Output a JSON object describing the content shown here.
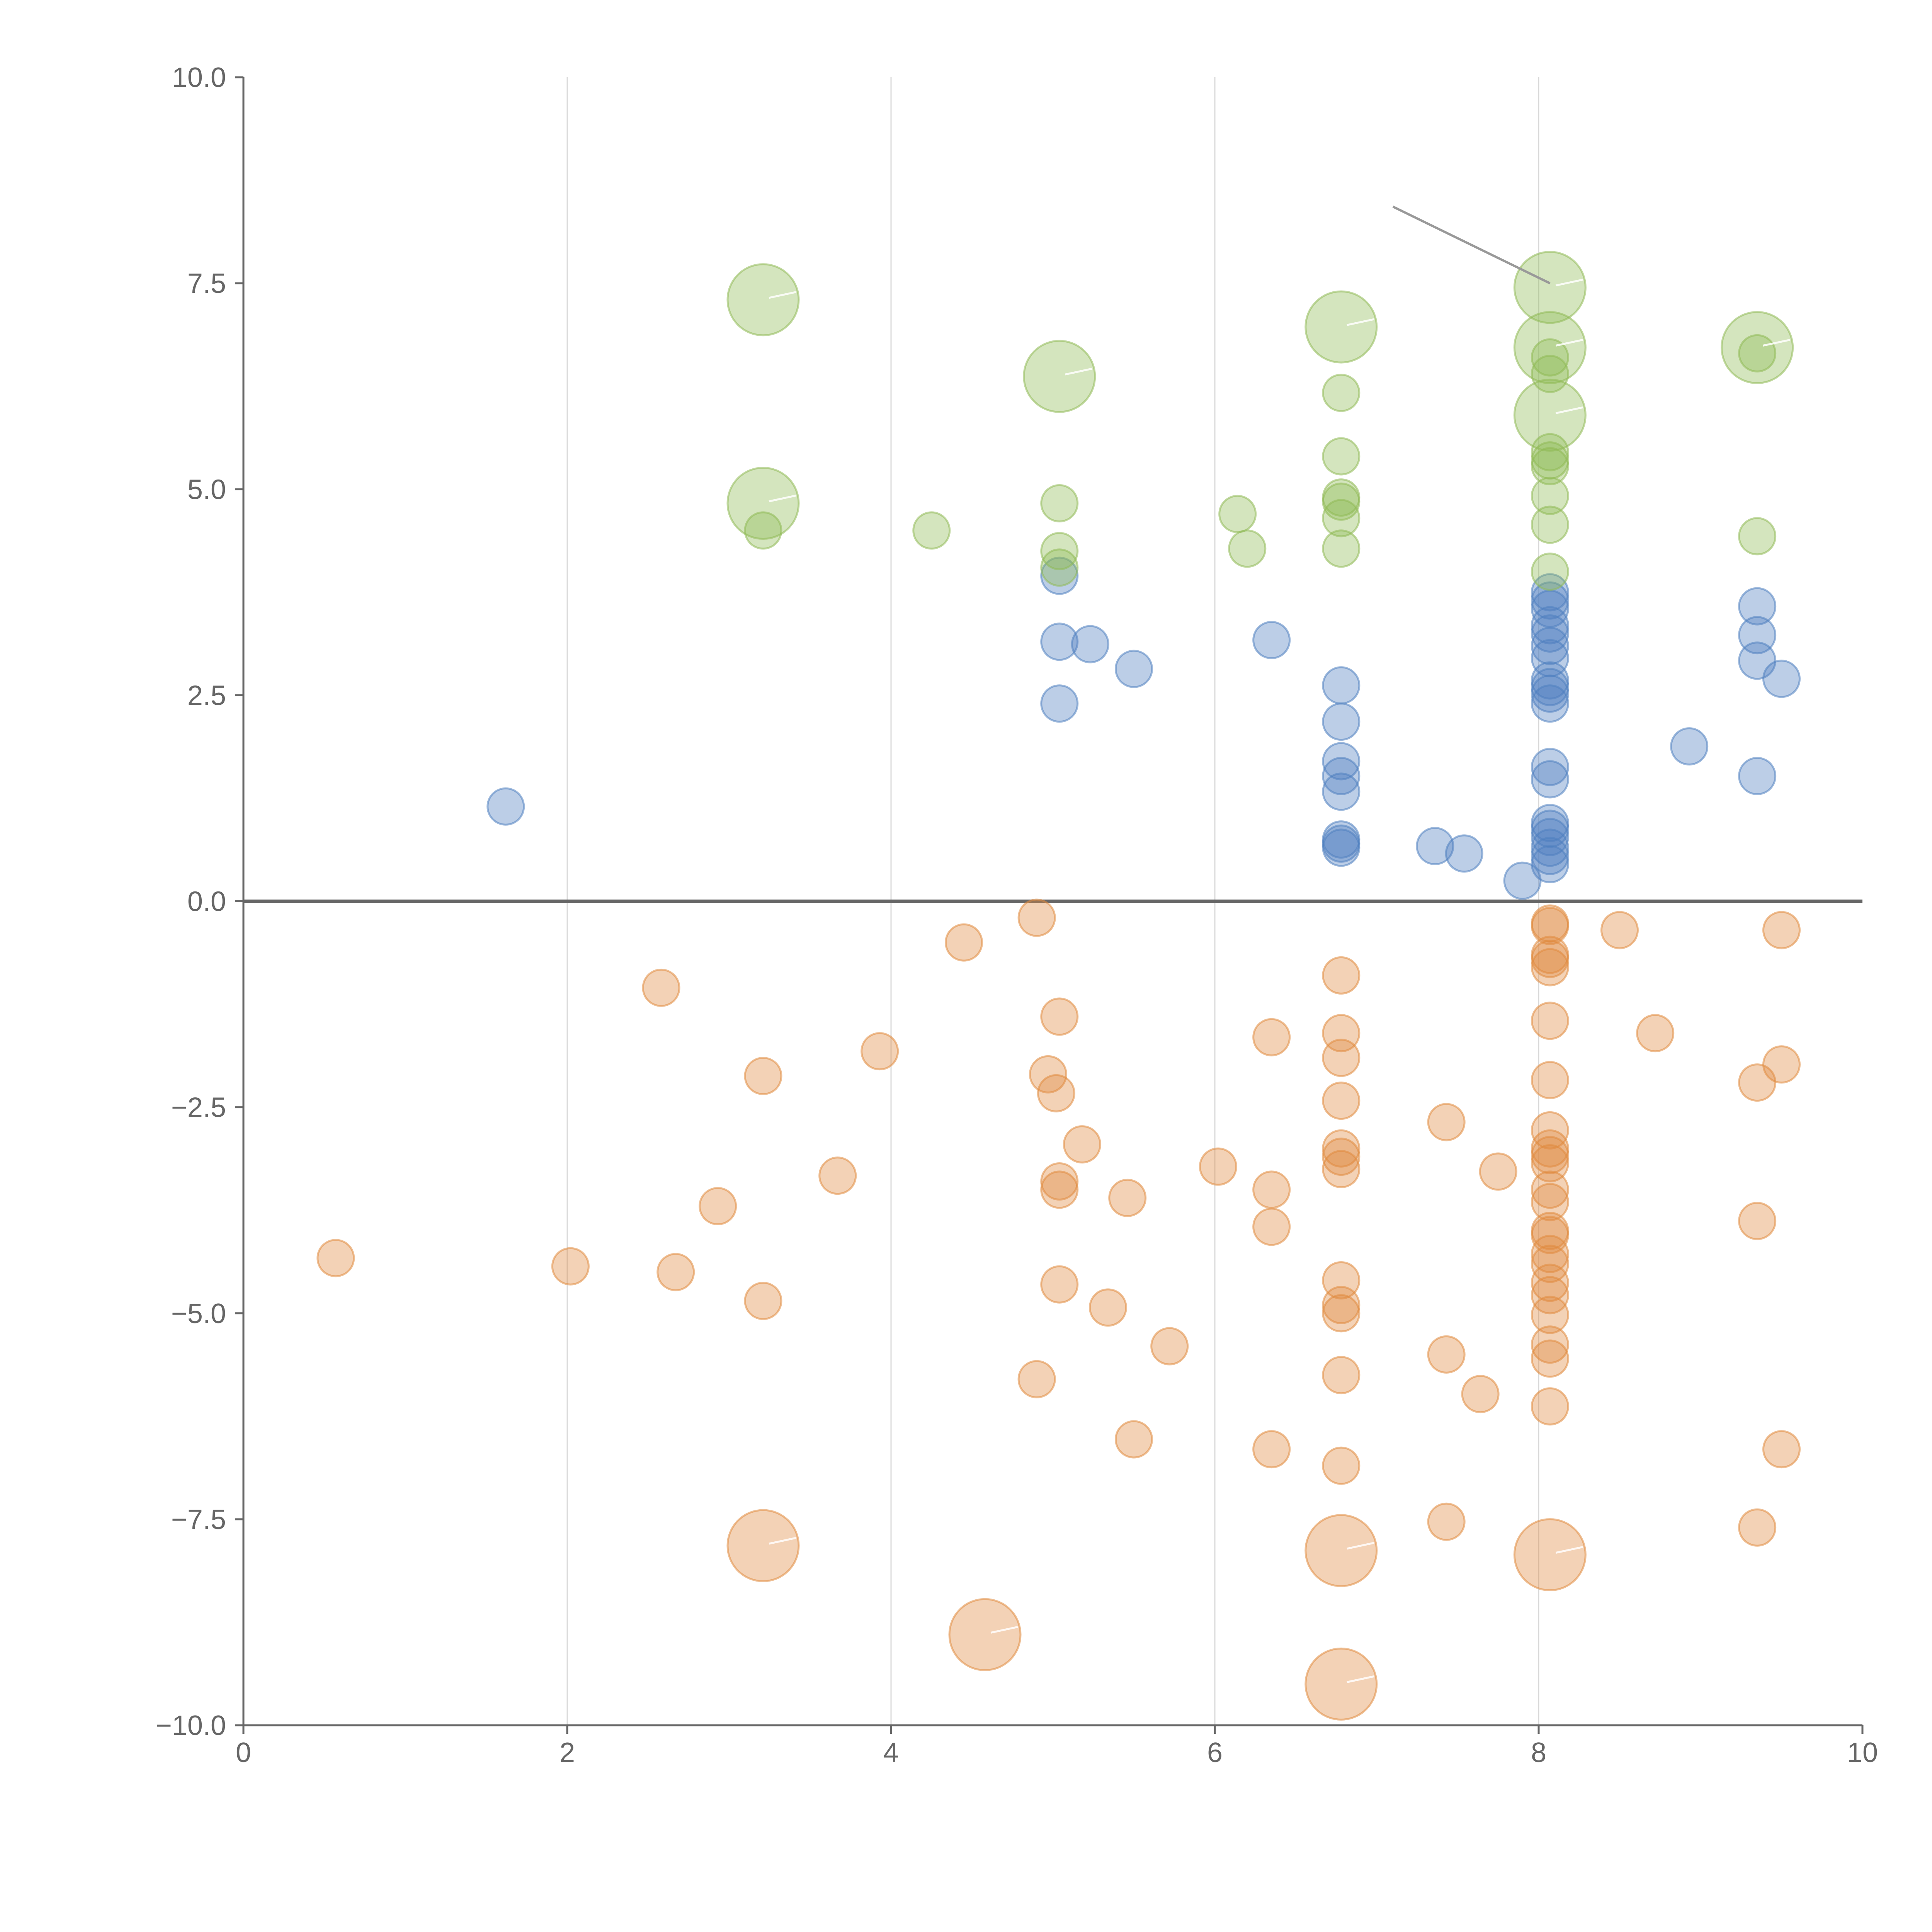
{
  "chart_data": {
    "type": "scatter",
    "title": "",
    "xlabel": "",
    "ylabel": "",
    "xlim": [
      0,
      10
    ],
    "ylim": [
      -10,
      10
    ],
    "x_ticks": [
      "0",
      "2",
      "4",
      "6",
      "8",
      "10"
    ],
    "y_ticks": [
      "10.0",
      "7.5",
      "5.0",
      "2.5",
      "0.0",
      "−2.5",
      "−5.0",
      "−7.5",
      "−10.0"
    ],
    "grid": "vertical",
    "colors": {
      "blue": "#4f7fc0",
      "orange": "#e08a3e",
      "green": "#8fba55"
    },
    "series": [
      {
        "name": "blue",
        "color": "#4f7fc0",
        "points": [
          [
            1.62,
            1.15
          ],
          [
            5.04,
            3.95
          ],
          [
            5.04,
            3.15
          ],
          [
            5.04,
            2.4
          ],
          [
            5.23,
            3.12
          ],
          [
            5.5,
            2.82
          ],
          [
            6.35,
            3.17
          ],
          [
            6.78,
            2.62
          ],
          [
            6.78,
            2.18
          ],
          [
            6.78,
            1.7
          ],
          [
            6.78,
            1.52
          ],
          [
            6.78,
            1.33
          ],
          [
            6.78,
            0.75
          ],
          [
            6.78,
            0.7
          ],
          [
            6.78,
            0.65
          ],
          [
            7.36,
            0.67
          ],
          [
            7.54,
            0.58
          ],
          [
            7.9,
            0.25
          ],
          [
            8.07,
            3.75
          ],
          [
            8.07,
            3.65
          ],
          [
            8.07,
            3.55
          ],
          [
            8.07,
            3.35
          ],
          [
            8.07,
            3.25
          ],
          [
            8.07,
            3.1
          ],
          [
            8.07,
            2.95
          ],
          [
            8.07,
            2.68
          ],
          [
            8.07,
            2.6
          ],
          [
            8.07,
            2.52
          ],
          [
            8.07,
            2.4
          ],
          [
            8.07,
            1.63
          ],
          [
            8.07,
            1.48
          ],
          [
            8.07,
            0.95
          ],
          [
            8.07,
            0.88
          ],
          [
            8.07,
            0.78
          ],
          [
            8.07,
            0.65
          ],
          [
            8.07,
            0.55
          ],
          [
            8.07,
            0.45
          ],
          [
            8.93,
            1.88
          ],
          [
            9.35,
            3.58
          ],
          [
            9.35,
            3.23
          ],
          [
            9.35,
            2.92
          ],
          [
            9.35,
            1.52
          ],
          [
            9.5,
            2.7
          ]
        ]
      },
      {
        "name": "orange",
        "color": "#e08a3e",
        "points": [
          [
            0.57,
            -4.33
          ],
          [
            2.02,
            -4.43
          ],
          [
            2.58,
            -1.05
          ],
          [
            2.67,
            -4.5
          ],
          [
            2.93,
            -3.7
          ],
          [
            3.21,
            -2.12
          ],
          [
            3.21,
            -4.85
          ],
          [
            3.67,
            -3.33
          ],
          [
            3.93,
            -1.82
          ],
          [
            4.45,
            -0.5
          ],
          [
            4.9,
            -0.2
          ],
          [
            4.9,
            -5.8
          ],
          [
            4.97,
            -2.1
          ],
          [
            5.02,
            -2.33
          ],
          [
            5.04,
            -1.4
          ],
          [
            5.04,
            -3.4
          ],
          [
            5.04,
            -3.5
          ],
          [
            5.04,
            -4.65
          ],
          [
            5.18,
            -2.95
          ],
          [
            5.34,
            -4.93
          ],
          [
            5.46,
            -3.6
          ],
          [
            5.5,
            -6.53
          ],
          [
            5.72,
            -5.4
          ],
          [
            6.02,
            -3.22
          ],
          [
            6.35,
            -1.65
          ],
          [
            6.35,
            -3.5
          ],
          [
            6.35,
            -3.95
          ],
          [
            6.35,
            -6.65
          ],
          [
            6.78,
            -0.9
          ],
          [
            6.78,
            -1.6
          ],
          [
            6.78,
            -1.9
          ],
          [
            6.78,
            -2.42
          ],
          [
            6.78,
            -3.0
          ],
          [
            6.78,
            -3.1
          ],
          [
            6.78,
            -3.25
          ],
          [
            6.78,
            -4.6
          ],
          [
            6.78,
            -4.9
          ],
          [
            6.78,
            -5.0
          ],
          [
            6.78,
            -5.75
          ],
          [
            6.78,
            -6.85
          ],
          [
            7.43,
            -2.68
          ],
          [
            7.43,
            -5.5
          ],
          [
            7.43,
            -7.53
          ],
          [
            7.64,
            -5.98
          ],
          [
            7.75,
            -3.28
          ],
          [
            8.07,
            -0.27
          ],
          [
            8.07,
            -0.3
          ],
          [
            8.07,
            -0.65
          ],
          [
            8.07,
            -0.7
          ],
          [
            8.07,
            -0.8
          ],
          [
            8.07,
            -1.45
          ],
          [
            8.07,
            -2.17
          ],
          [
            8.07,
            -2.78
          ],
          [
            8.07,
            -3.0
          ],
          [
            8.07,
            -3.08
          ],
          [
            8.07,
            -3.18
          ],
          [
            8.07,
            -3.5
          ],
          [
            8.07,
            -3.65
          ],
          [
            8.07,
            -4.0
          ],
          [
            8.07,
            -4.05
          ],
          [
            8.07,
            -4.28
          ],
          [
            8.07,
            -4.4
          ],
          [
            8.07,
            -4.63
          ],
          [
            8.07,
            -4.78
          ],
          [
            8.07,
            -5.02
          ],
          [
            8.07,
            -5.38
          ],
          [
            8.07,
            -5.55
          ],
          [
            8.07,
            -6.13
          ],
          [
            8.5,
            -0.35
          ],
          [
            8.72,
            -1.6
          ],
          [
            9.35,
            -2.2
          ],
          [
            9.35,
            -3.88
          ],
          [
            9.35,
            -7.6
          ],
          [
            9.5,
            -0.35
          ],
          [
            9.5,
            -1.98
          ],
          [
            9.5,
            -6.65
          ]
        ]
      },
      {
        "name": "green",
        "color": "#8fba55",
        "points": [
          [
            3.21,
            4.5
          ],
          [
            4.25,
            4.5
          ],
          [
            5.04,
            4.83
          ],
          [
            5.04,
            4.25
          ],
          [
            5.04,
            4.05
          ],
          [
            6.14,
            4.7
          ],
          [
            6.2,
            4.28
          ],
          [
            6.78,
            6.17
          ],
          [
            6.78,
            5.4
          ],
          [
            6.78,
            4.9
          ],
          [
            6.78,
            4.85
          ],
          [
            6.78,
            4.65
          ],
          [
            6.78,
            4.28
          ],
          [
            8.07,
            6.6
          ],
          [
            8.07,
            6.4
          ],
          [
            8.07,
            5.45
          ],
          [
            8.07,
            5.35
          ],
          [
            8.07,
            5.28
          ],
          [
            8.07,
            4.92
          ],
          [
            8.07,
            4.57
          ],
          [
            8.07,
            4.0
          ],
          [
            9.35,
            6.65
          ],
          [
            9.35,
            4.43
          ]
        ]
      }
    ],
    "large_markers": [
      {
        "series": "green",
        "x": 3.21,
        "y": 7.3
      },
      {
        "series": "green",
        "x": 3.21,
        "y": 4.83
      },
      {
        "series": "green",
        "x": 5.04,
        "y": 6.37
      },
      {
        "series": "green",
        "x": 6.78,
        "y": 6.97
      },
      {
        "series": "green",
        "x": 8.07,
        "y": 7.45
      },
      {
        "series": "green",
        "x": 8.07,
        "y": 6.72
      },
      {
        "series": "green",
        "x": 8.07,
        "y": 5.9
      },
      {
        "series": "green",
        "x": 9.35,
        "y": 6.72
      },
      {
        "series": "orange",
        "x": 3.21,
        "y": -7.82
      },
      {
        "series": "orange",
        "x": 4.58,
        "y": -8.9
      },
      {
        "series": "orange",
        "x": 6.78,
        "y": -7.88
      },
      {
        "series": "orange",
        "x": 8.07,
        "y": -7.93
      },
      {
        "series": "orange",
        "x": 6.78,
        "y": -9.5
      }
    ],
    "annotation_leader": {
      "from": [
        7.1,
        8.43
      ],
      "to": [
        8.07,
        7.5
      ]
    }
  }
}
